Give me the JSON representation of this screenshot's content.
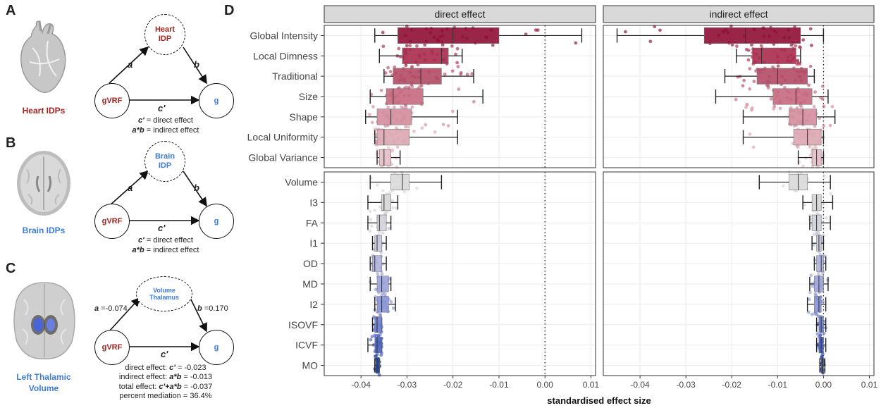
{
  "colors": {
    "heart": "#a0241e",
    "brain": "#3d7bd9",
    "outline": "#111111"
  },
  "panels": {
    "A": {
      "letter": "A",
      "organ_label": "Heart IDPs",
      "organ_icon": "heart-illustration",
      "mediator": "Heart\nIDP",
      "exposure": "gVRF",
      "outcome": "g",
      "path_a": "a",
      "path_b": "b",
      "path_c": "c'",
      "caption_direct_sym": "c'",
      "caption_direct_text": " = direct effect",
      "caption_indirect_sym": "a*b",
      "caption_indirect_text": " = indirect effect"
    },
    "B": {
      "letter": "B",
      "organ_label": "Brain IDPs",
      "organ_icon": "brain-axial-slice",
      "mediator": "Brain\nIDP",
      "exposure": "gVRF",
      "outcome": "g",
      "path_a": "a",
      "path_b": "b",
      "path_c": "c'",
      "caption_direct_sym": "c'",
      "caption_direct_text": " = direct effect",
      "caption_indirect_sym": "a*b",
      "caption_indirect_text": " = indirect effect"
    },
    "C": {
      "letter": "C",
      "organ_label": "Left Thalamic\nVolume",
      "organ_icon": "brain-3d-thalamus",
      "mediator": "Volume\nThalamus",
      "exposure": "gVRF",
      "outcome": "g",
      "path_a_sym": "a",
      "path_a_val": " =-0.074",
      "path_b_sym": "b",
      "path_b_val": " =0.170",
      "path_c": "c'",
      "line1_pre": "direct effect: ",
      "line1_sym": "c'",
      "line1_post": " = -0.023",
      "line2_pre": "indirect effect: ",
      "line2_sym": "a*b",
      "line2_post": " = -0.013",
      "line3_pre": "total effect: ",
      "line3_sym": "c'+a*b",
      "line3_post": " = -0.037",
      "line4": "percent mediation = 36.4%"
    },
    "D": {
      "letter": "D"
    }
  },
  "chart_data": {
    "type": "box",
    "facets": [
      "direct effect",
      "indirect effect"
    ],
    "xlabel": "standardised effect size",
    "xlim": [
      -0.048,
      0.011
    ],
    "xticks": [
      -0.04,
      -0.03,
      -0.02,
      -0.01,
      0.0,
      0.01
    ],
    "xtick_labels": [
      "-0.04",
      "-0.03",
      "-0.02",
      "-0.01",
      "0.00",
      "0.01"
    ],
    "reference_line": 0.0,
    "groups": [
      {
        "name": "heart",
        "rows": [
          {
            "label": "Global Intensity",
            "color": "#8e0e35",
            "direct": {
              "min": -0.037,
              "q1": -0.032,
              "med": -0.02,
              "q3": -0.01,
              "max": 0.008
            },
            "indirect": {
              "min": -0.045,
              "q1": -0.026,
              "med": -0.017,
              "q3": -0.005,
              "max": 0.0
            }
          },
          {
            "label": "Local Dimness",
            "color": "#a72b4c",
            "direct": {
              "min": -0.036,
              "q1": -0.031,
              "med": -0.0225,
              "q3": -0.021,
              "max": -0.018
            },
            "indirect": {
              "min": -0.019,
              "q1": -0.0155,
              "med": -0.0135,
              "q3": -0.006,
              "max": -0.005
            }
          },
          {
            "label": "Traditional",
            "color": "#b34a65",
            "direct": {
              "min": -0.035,
              "q1": -0.033,
              "med": -0.027,
              "q3": -0.0225,
              "max": -0.0155
            },
            "indirect": {
              "min": -0.0215,
              "q1": -0.0145,
              "med": -0.01,
              "q3": -0.0035,
              "max": -0.002
            }
          },
          {
            "label": "Size",
            "color": "#c6697f",
            "direct": {
              "min": -0.038,
              "q1": -0.0345,
              "med": -0.033,
              "q3": -0.0265,
              "max": -0.0135
            },
            "indirect": {
              "min": -0.0235,
              "q1": -0.011,
              "med": -0.006,
              "q3": -0.0025,
              "max": 0.001
            }
          },
          {
            "label": "Shape",
            "color": "#d48c9c",
            "direct": {
              "min": -0.039,
              "q1": -0.0365,
              "med": -0.0335,
              "q3": -0.029,
              "max": -0.019
            },
            "indirect": {
              "min": -0.0175,
              "q1": -0.0075,
              "med": -0.0045,
              "q3": -0.0015,
              "max": 0.0025
            }
          },
          {
            "label": "Local Uniformity",
            "color": "#dca7b3",
            "direct": {
              "min": -0.037,
              "q1": -0.0365,
              "med": -0.035,
              "q3": -0.0295,
              "max": -0.019
            },
            "indirect": {
              "min": -0.0175,
              "q1": -0.0065,
              "med": -0.0035,
              "q3": -0.0005,
              "max": 0.0
            }
          },
          {
            "label": "Global Variance",
            "color": "#e5c0c8",
            "direct": {
              "min": -0.0365,
              "q1": -0.036,
              "med": -0.035,
              "q3": -0.0335,
              "max": -0.0315
            },
            "indirect": {
              "min": -0.0055,
              "q1": -0.0025,
              "med": -0.0015,
              "q3": -0.0005,
              "max": 0.0
            }
          }
        ]
      },
      {
        "name": "brain",
        "rows": [
          {
            "label": "Volume",
            "color": "#d9d9d9",
            "direct": {
              "min": -0.038,
              "q1": -0.0335,
              "med": -0.031,
              "q3": -0.0295,
              "max": -0.0225
            },
            "indirect": {
              "min": -0.014,
              "q1": -0.0075,
              "med": -0.0055,
              "q3": -0.0035,
              "max": 0.0015
            }
          },
          {
            "label": "I3",
            "color": "#d6d6d6",
            "direct": {
              "min": -0.0385,
              "q1": -0.0355,
              "med": -0.035,
              "q3": -0.0335,
              "max": -0.032
            },
            "indirect": {
              "min": -0.0045,
              "q1": -0.0025,
              "med": -0.0015,
              "q3": -0.0005,
              "max": 0.002
            }
          },
          {
            "label": "FA",
            "color": "#d0d0d8",
            "direct": {
              "min": -0.0385,
              "q1": -0.0365,
              "med": -0.036,
              "q3": -0.0345,
              "max": -0.0335
            },
            "indirect": {
              "min": -0.003,
              "q1": -0.0025,
              "med": -0.0015,
              "q3": -0.0005,
              "max": 0.0015
            }
          },
          {
            "label": "I1",
            "color": "#c6c8dc",
            "direct": {
              "min": -0.0375,
              "q1": -0.037,
              "med": -0.0365,
              "q3": -0.0355,
              "max": -0.0345
            },
            "indirect": {
              "min": -0.0025,
              "q1": -0.0015,
              "med": -0.001,
              "q3": -0.0005,
              "max": 0.0
            }
          },
          {
            "label": "OD",
            "color": "#aeb3da",
            "direct": {
              "min": -0.038,
              "q1": -0.0375,
              "med": -0.037,
              "q3": -0.0355,
              "max": -0.0345
            },
            "indirect": {
              "min": -0.002,
              "q1": -0.0015,
              "med": -0.0005,
              "q3": 0.0,
              "max": 0.0005
            }
          },
          {
            "label": "MD",
            "color": "#9ca3d6",
            "direct": {
              "min": -0.038,
              "q1": -0.0365,
              "med": -0.0355,
              "q3": -0.034,
              "max": -0.0335
            },
            "indirect": {
              "min": -0.003,
              "q1": -0.002,
              "med": -0.001,
              "q3": 0.0,
              "max": 0.001
            }
          },
          {
            "label": "I2",
            "color": "#8893d2",
            "direct": {
              "min": -0.037,
              "q1": -0.0365,
              "med": -0.0355,
              "q3": -0.034,
              "max": -0.0325
            },
            "indirect": {
              "min": -0.0035,
              "q1": -0.002,
              "med": -0.001,
              "q3": -0.0005,
              "max": 0.0005
            }
          },
          {
            "label": "ISOVF",
            "color": "#6c7cc9",
            "direct": {
              "min": -0.0375,
              "q1": -0.037,
              "med": -0.0365,
              "q3": -0.0355,
              "max": -0.0355
            },
            "indirect": {
              "min": -0.0015,
              "q1": -0.001,
              "med": -0.0005,
              "q3": 0.0,
              "max": 0.0005
            }
          },
          {
            "label": "ICVF",
            "color": "#4a5fbd",
            "direct": {
              "min": -0.0385,
              "q1": -0.037,
              "med": -0.0365,
              "q3": -0.0355,
              "max": -0.0355
            },
            "indirect": {
              "min": -0.0015,
              "q1": -0.001,
              "med": -0.0005,
              "q3": 0.0,
              "max": 0.0005
            }
          },
          {
            "label": "MO",
            "color": "#1f45a8",
            "direct": {
              "min": -0.037,
              "q1": -0.0368,
              "med": -0.0365,
              "q3": -0.036,
              "max": -0.036
            },
            "indirect": {
              "min": -0.0008,
              "q1": -0.0005,
              "med": -0.0003,
              "q3": 0.0,
              "max": 0.0003
            }
          }
        ]
      }
    ]
  }
}
